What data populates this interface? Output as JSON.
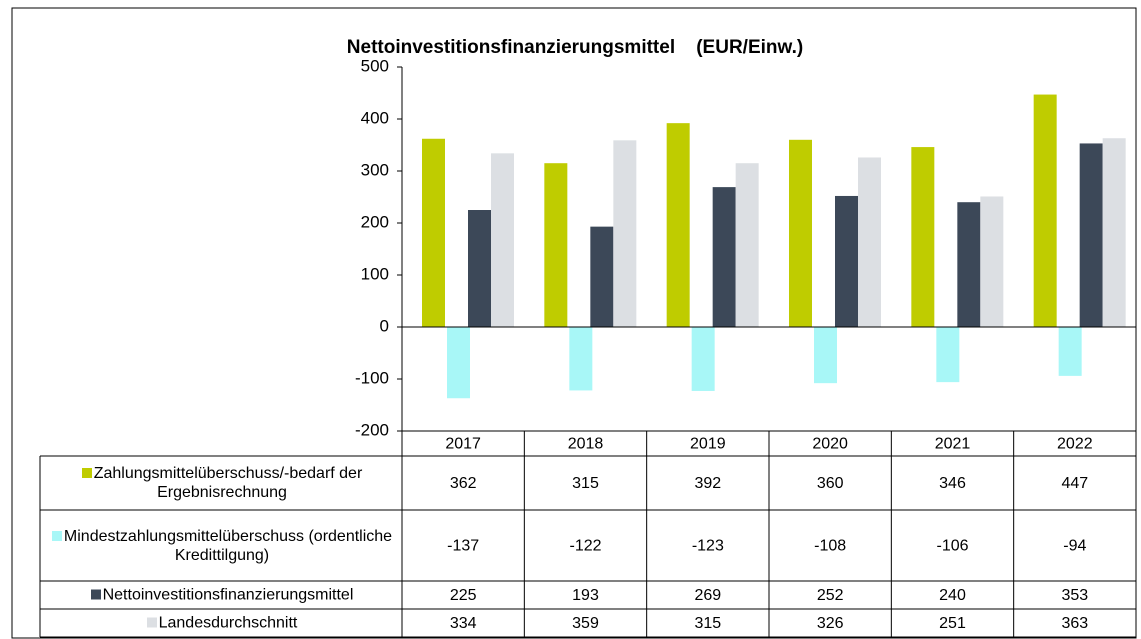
{
  "chart_data": {
    "type": "bar",
    "title": "Nettoinvestitionsfinanzierungsmittel    (EUR/Einw.)",
    "categories": [
      "2017",
      "2018",
      "2019",
      "2020",
      "2021",
      "2022"
    ],
    "series": [
      {
        "name": "Zahlungsmittelüberschuss/-bedarf der Ergebnisrechnung",
        "color": "#bfcc00",
        "values": [
          362,
          315,
          392,
          360,
          346,
          447
        ]
      },
      {
        "name": "Mindestzahlungsmittelüberschuss (ordentliche Kredittilgung)",
        "color": "#a8f7f7",
        "values": [
          -137,
          -122,
          -123,
          -108,
          -106,
          -94
        ]
      },
      {
        "name": "Nettoinvestitionsfinanzierungsmittel",
        "color": "#3c4858",
        "values": [
          225,
          193,
          269,
          252,
          240,
          353
        ]
      },
      {
        "name": "Landesdurchschnitt",
        "color": "#dcdfe3",
        "values": [
          334,
          359,
          315,
          326,
          251,
          363
        ]
      }
    ],
    "ylim": [
      -200,
      500
    ],
    "yticks": [
      500,
      400,
      300,
      200,
      100,
      0,
      -100,
      -200
    ]
  }
}
